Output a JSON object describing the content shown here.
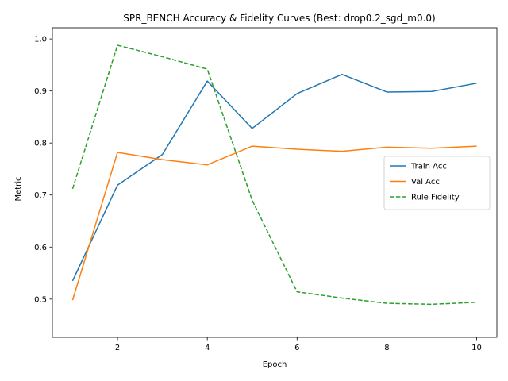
{
  "chart_data": {
    "type": "line",
    "title": "SPR_BENCH Accuracy & Fidelity Curves (Best: drop0.2_sgd_m0.0)",
    "xlabel": "Epoch",
    "ylabel": "Metric",
    "xlim": [
      0.55,
      10.45
    ],
    "ylim": [
      0.4265,
      1.0215
    ],
    "xticks": [
      2,
      4,
      6,
      8,
      10
    ],
    "xtick_labels": [
      "2",
      "4",
      "6",
      "8",
      "10"
    ],
    "yticks": [
      0.5,
      0.6,
      0.7,
      0.8,
      0.9,
      1.0
    ],
    "ytick_labels": [
      "0.5",
      "0.6",
      "0.7",
      "0.8",
      "0.9",
      "1.0"
    ],
    "grid": false,
    "legend_position": "center-right",
    "x": [
      1,
      2,
      3,
      4,
      5,
      6,
      7,
      8,
      9,
      10
    ],
    "series": [
      {
        "name": "Train Acc",
        "color": "#1f77b4",
        "style": "solid",
        "values": [
          0.535,
          0.719,
          0.778,
          0.919,
          0.828,
          0.895,
          0.932,
          0.898,
          0.899,
          0.915
        ]
      },
      {
        "name": "Val Acc",
        "color": "#ff7f0e",
        "style": "solid",
        "values": [
          0.498,
          0.782,
          0.768,
          0.758,
          0.794,
          0.788,
          0.784,
          0.792,
          0.79,
          0.794
        ]
      },
      {
        "name": "Rule Fidelity",
        "color": "#2ca02c",
        "style": "dashed",
        "values": [
          0.712,
          0.988,
          0.966,
          0.942,
          0.69,
          0.514,
          0.502,
          0.492,
          0.49,
          0.494
        ]
      }
    ]
  }
}
